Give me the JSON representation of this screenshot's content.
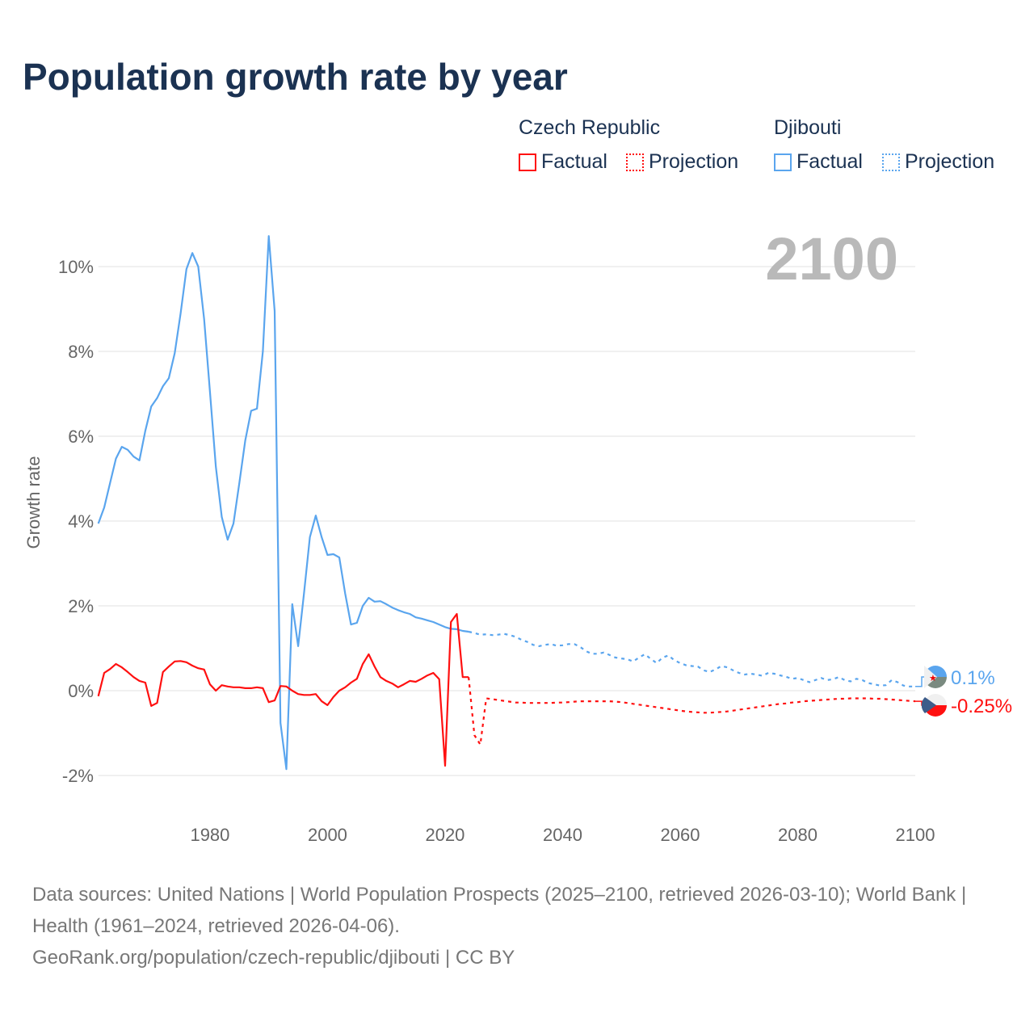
{
  "title": "Population growth rate by year",
  "legend": {
    "groups": [
      {
        "name": "Czech Republic",
        "color": "#ff1010",
        "factual": "Factual",
        "projection": "Projection"
      },
      {
        "name": "Djibouti",
        "color": "#5aa5ee",
        "factual": "Factual",
        "projection": "Projection"
      }
    ]
  },
  "current_year": "2100",
  "footer": {
    "line1": "Data sources: United Nations | World Population Prospects (2025–2100, retrieved 2026-03-10); World Bank | Health (1961–2024, retrieved 2026-04-06).",
    "line2": "GeoRank.org/population/czech-republic/djibouti | CC BY"
  },
  "chart_data": {
    "type": "line",
    "title": "Population growth rate by year",
    "xlabel": "",
    "ylabel": "Growth rate",
    "xlim": [
      1961,
      2100
    ],
    "ylim": [
      -3,
      11
    ],
    "x_ticks": [
      1980,
      2000,
      2020,
      2040,
      2060,
      2080,
      2100
    ],
    "x_tick_labels": [
      "1980",
      "2000",
      "2020",
      "2040",
      "2060",
      "2080",
      "2100"
    ],
    "y_ticks": [
      -2,
      0,
      2,
      4,
      6,
      8,
      10
    ],
    "y_tick_labels": [
      "-2%",
      "0%",
      "2%",
      "4%",
      "6%",
      "8%",
      "10%"
    ],
    "grid": true,
    "series": [
      {
        "name": "Djibouti",
        "color": "#5aa5ee",
        "end_label": "0.1%",
        "factual_start": 1961,
        "factual": [
          3.94,
          4.32,
          4.9,
          5.47,
          5.75,
          5.68,
          5.52,
          5.43,
          6.13,
          6.7,
          6.9,
          7.18,
          7.37,
          7.96,
          8.9,
          9.94,
          10.32,
          10.0,
          8.76,
          7.05,
          5.28,
          4.1,
          3.56,
          3.94,
          4.9,
          5.9,
          6.6,
          6.65,
          8.0,
          10.72,
          8.95,
          -0.76,
          -1.85,
          2.04,
          1.05,
          2.29,
          3.62,
          4.13,
          3.62,
          3.2,
          3.22,
          3.14,
          2.29,
          1.56,
          1.6,
          2.0,
          2.19,
          2.1,
          2.11,
          2.04,
          1.96,
          1.9,
          1.85,
          1.81,
          1.73,
          1.7,
          1.66,
          1.62,
          1.56,
          1.5,
          1.46,
          1.45,
          1.41,
          1.39
        ],
        "projection_start": 2024,
        "projection": [
          1.39,
          1.36,
          1.32,
          1.33,
          1.31,
          1.32,
          1.34,
          1.31,
          1.27,
          1.2,
          1.15,
          1.08,
          1.05,
          1.08,
          1.1,
          1.06,
          1.07,
          1.1,
          1.1,
          1.03,
          0.93,
          0.87,
          0.87,
          0.9,
          0.84,
          0.78,
          0.76,
          0.74,
          0.69,
          0.78,
          0.86,
          0.75,
          0.65,
          0.78,
          0.83,
          0.72,
          0.65,
          0.6,
          0.58,
          0.57,
          0.48,
          0.44,
          0.5,
          0.58,
          0.55,
          0.48,
          0.42,
          0.38,
          0.4,
          0.38,
          0.35,
          0.42,
          0.4,
          0.36,
          0.33,
          0.28,
          0.3,
          0.25,
          0.2,
          0.25,
          0.3,
          0.25,
          0.27,
          0.32,
          0.25,
          0.22,
          0.28,
          0.25,
          0.18,
          0.15,
          0.12,
          0.13,
          0.25,
          0.2,
          0.12,
          0.1,
          0.1
        ]
      },
      {
        "name": "Czech Republic",
        "color": "#ff1010",
        "end_label": "-0.25%",
        "factual_start": 1961,
        "factual": [
          -0.13,
          0.42,
          0.51,
          0.63,
          0.55,
          0.44,
          0.32,
          0.23,
          0.19,
          -0.36,
          -0.29,
          0.44,
          0.57,
          0.69,
          0.7,
          0.67,
          0.59,
          0.53,
          0.5,
          0.15,
          0.0,
          0.13,
          0.1,
          0.08,
          0.08,
          0.06,
          0.06,
          0.08,
          0.06,
          -0.27,
          -0.23,
          0.11,
          0.1,
          0.0,
          -0.08,
          -0.1,
          -0.1,
          -0.08,
          -0.25,
          -0.34,
          -0.15,
          0.0,
          0.08,
          0.19,
          0.28,
          0.63,
          0.86,
          0.57,
          0.32,
          0.23,
          0.17,
          0.08,
          0.15,
          0.23,
          0.21,
          0.28,
          0.36,
          0.42,
          0.27,
          -1.77,
          1.62,
          1.81,
          0.32,
          0.32
        ],
        "projection_start": 2024,
        "projection": [
          0.32,
          -1.05,
          -1.27,
          -0.18,
          -0.2,
          -0.22,
          -0.24,
          -0.26,
          -0.28,
          -0.28,
          -0.29,
          -0.29,
          -0.29,
          -0.29,
          -0.29,
          -0.28,
          -0.28,
          -0.27,
          -0.26,
          -0.25,
          -0.25,
          -0.25,
          -0.25,
          -0.25,
          -0.25,
          -0.26,
          -0.27,
          -0.29,
          -0.31,
          -0.33,
          -0.35,
          -0.37,
          -0.39,
          -0.41,
          -0.43,
          -0.45,
          -0.47,
          -0.49,
          -0.5,
          -0.51,
          -0.52,
          -0.52,
          -0.51,
          -0.5,
          -0.49,
          -0.47,
          -0.45,
          -0.43,
          -0.41,
          -0.39,
          -0.37,
          -0.35,
          -0.33,
          -0.31,
          -0.3,
          -0.28,
          -0.27,
          -0.25,
          -0.24,
          -0.23,
          -0.22,
          -0.21,
          -0.2,
          -0.19,
          -0.19,
          -0.18,
          -0.18,
          -0.18,
          -0.18,
          -0.19,
          -0.19,
          -0.2,
          -0.21,
          -0.22,
          -0.23,
          -0.24,
          -0.25
        ]
      }
    ]
  }
}
